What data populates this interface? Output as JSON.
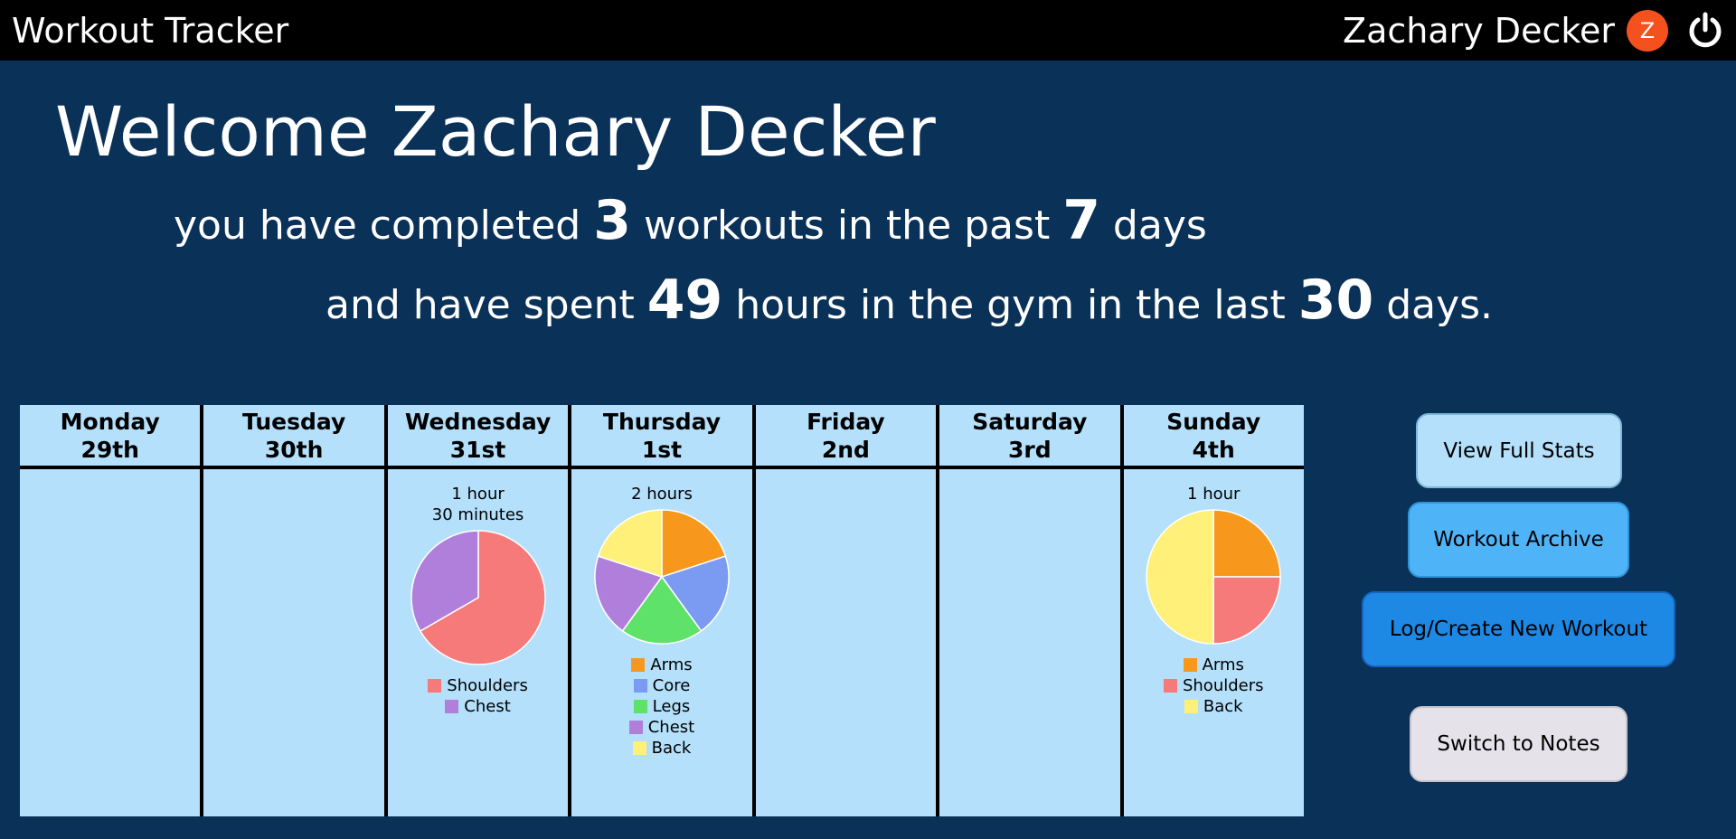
{
  "header": {
    "app_title": "Workout Tracker",
    "user_name": "Zachary Decker",
    "avatar_initial": "Z",
    "power_icon": "power-icon"
  },
  "welcome": {
    "title": "Welcome Zachary Decker",
    "line1_a": "you have completed ",
    "workouts_count": "3",
    "line1_b": " workouts in the past ",
    "days_count": "7",
    "line1_c": " days",
    "line2_a": "and have spent ",
    "hours": "49",
    "line2_b": " hours in the gym in the last ",
    "period_days": "30",
    "line2_c": " days."
  },
  "colors": {
    "Arms": "#f7981c",
    "Core": "#7b9bf3",
    "Legs": "#5ee26a",
    "Chest": "#b07fdc",
    "Back": "#fff07a",
    "Shoulders": "#f67a7a"
  },
  "days": [
    {
      "name": "Monday",
      "date": "29th",
      "duration": "",
      "slices": []
    },
    {
      "name": "Tuesday",
      "date": "30th",
      "duration": "",
      "slices": []
    },
    {
      "name": "Wednesday",
      "date": "31st",
      "duration": "1 hour\n30 minutes",
      "slices": [
        {
          "label": "Shoulders",
          "value": 60
        },
        {
          "label": "Chest",
          "value": 30
        }
      ]
    },
    {
      "name": "Thursday",
      "date": "1st",
      "duration": "2 hours",
      "slices": [
        {
          "label": "Arms",
          "value": 24
        },
        {
          "label": "Core",
          "value": 24
        },
        {
          "label": "Legs",
          "value": 24
        },
        {
          "label": "Chest",
          "value": 24
        },
        {
          "label": "Back",
          "value": 24
        }
      ]
    },
    {
      "name": "Friday",
      "date": "2nd",
      "duration": "",
      "slices": []
    },
    {
      "name": "Saturday",
      "date": "3rd",
      "duration": "",
      "slices": []
    },
    {
      "name": "Sunday",
      "date": "4th",
      "duration": "1 hour",
      "slices": [
        {
          "label": "Arms",
          "value": 15
        },
        {
          "label": "Shoulders",
          "value": 15
        },
        {
          "label": "Back",
          "value": 30
        }
      ],
      "legend_order": [
        "Arms",
        "Shoulders",
        "Back"
      ]
    }
  ],
  "buttons": {
    "view_stats": "View Full Stats",
    "archive": "Workout Archive",
    "log_create": "Log/Create New Workout",
    "notes": "Switch to Notes"
  }
}
